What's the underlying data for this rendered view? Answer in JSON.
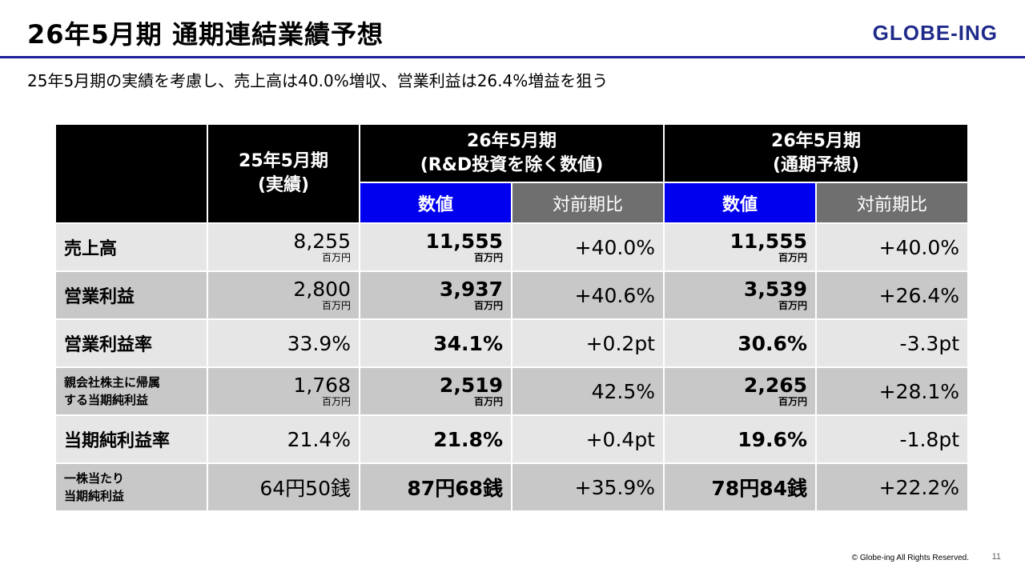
{
  "header": {
    "title": "26年5月期 通期連結業績予想",
    "logo": "GLOBE-ING",
    "subtitle": "25年5月期の実績を考慮し、売上高は40.0%増収、営業利益は26.4%増益を狙う"
  },
  "table": {
    "col_fy25": "25年5月期\n(実績)",
    "col_rd": "26年5月期\n(R&D投資を除く数値)",
    "col_forecast": "26年5月期\n(通期予想)",
    "sub_value": "数値",
    "sub_yoy": "対前期比",
    "rows": [
      {
        "label": "売上高",
        "fy25": "8,255",
        "fy25_unit": "百万円",
        "rd": "11,555",
        "rd_unit": "百万円",
        "rd_yoy": "+40.0%",
        "fc": "11,555",
        "fc_unit": "百万円",
        "fc_yoy": "+40.0%"
      },
      {
        "label": "営業利益",
        "fy25": "2,800",
        "fy25_unit": "百万円",
        "rd": "3,937",
        "rd_unit": "百万円",
        "rd_yoy": "+40.6%",
        "fc": "3,539",
        "fc_unit": "百万円",
        "fc_yoy": "+26.4%"
      },
      {
        "label": "営業利益率",
        "fy25": "33.9%",
        "fy25_unit": "",
        "rd": "34.1%",
        "rd_unit": "",
        "rd_yoy": "+0.2pt",
        "fc": "30.6%",
        "fc_unit": "",
        "fc_yoy": "-3.3pt"
      },
      {
        "label": "親会社株主に帰属\nする当期純利益",
        "fy25": "1,768",
        "fy25_unit": "百万円",
        "rd": "2,519",
        "rd_unit": "百万円",
        "rd_yoy": "42.5%",
        "fc": "2,265",
        "fc_unit": "百万円",
        "fc_yoy": "+28.1%"
      },
      {
        "label": "当期純利益率",
        "fy25": "21.4%",
        "fy25_unit": "",
        "rd": "21.8%",
        "rd_unit": "",
        "rd_yoy": "+0.4pt",
        "fc": "19.6%",
        "fc_unit": "",
        "fc_yoy": "-1.8pt"
      },
      {
        "label": "一株当たり\n当期純利益",
        "fy25": "64円50銭",
        "fy25_unit": "",
        "rd": "87円68銭",
        "rd_unit": "",
        "rd_yoy": "+35.9%",
        "fc": "78円84銭",
        "fc_unit": "",
        "fc_yoy": "+22.2%"
      }
    ]
  },
  "footer": {
    "copyright": "© Globe-ing All Rights Reserved.",
    "page": "11"
  }
}
